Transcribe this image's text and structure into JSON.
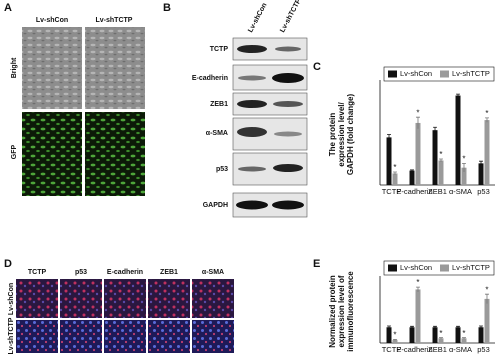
{
  "figure": {
    "panel_labels": [
      "A",
      "B",
      "C",
      "D",
      "E"
    ],
    "a": {
      "columns": [
        "Lv-shCon",
        "Lv-shTCTP"
      ],
      "rows": [
        "Bright",
        "GFP"
      ]
    },
    "b": {
      "columns": [
        "Lv-shCon",
        "Lv-shTCTP"
      ],
      "rows": [
        "TCTP",
        "E-cadherin",
        "ZEB1",
        "α-SMA",
        "p53",
        "GAPDH"
      ]
    },
    "d": {
      "columns": [
        "TCTP",
        "p53",
        "E-cadherin",
        "ZEB1",
        "α-SMA"
      ],
      "rows": [
        "Lv-shCon",
        "Lv-shTCTP"
      ]
    }
  },
  "chart_data": [
    {
      "type": "bar",
      "ylabel": [
        "The protein",
        "expression level/",
        "GAPDH (fold change)"
      ],
      "categories": [
        "TCTP",
        "E-cadherin",
        "ZEB1",
        "α-SMA",
        "p53"
      ],
      "series": [
        {
          "name": "Lv-shCon",
          "color": "#111111",
          "values": [
            3.3,
            1.0,
            3.8,
            6.2,
            1.5
          ],
          "errors": [
            0.2,
            0.05,
            0.2,
            0.1,
            0.15
          ]
        },
        {
          "name": "Lv-shTCTP",
          "color": "#9a9a9a",
          "values": [
            0.8,
            4.3,
            1.7,
            1.2,
            4.5
          ],
          "errors": [
            0.1,
            0.4,
            0.1,
            0.3,
            0.15
          ]
        }
      ],
      "significance_mark": "*",
      "ylim": [
        0,
        7
      ]
    },
    {
      "type": "bar",
      "ylabel": [
        "Normalized protein",
        "expression level of",
        "immunofluorescence"
      ],
      "categories": [
        "TCTP",
        "E-cadherin",
        "ZEB1",
        "α-SMA",
        "p53"
      ],
      "series": [
        {
          "name": "Lv-shCon",
          "color": "#111111",
          "values": [
            1.0,
            1.0,
            1.0,
            1.0,
            1.0
          ],
          "errors": [
            0.08,
            0.06,
            0.06,
            0.06,
            0.08
          ]
        },
        {
          "name": "Lv-shTCTP",
          "color": "#9a9a9a",
          "values": [
            0.2,
            3.4,
            0.3,
            0.3,
            2.8
          ],
          "errors": [
            0.03,
            0.15,
            0.04,
            0.04,
            0.3
          ]
        }
      ],
      "significance_mark": "*",
      "ylim": [
        0,
        4
      ]
    }
  ]
}
